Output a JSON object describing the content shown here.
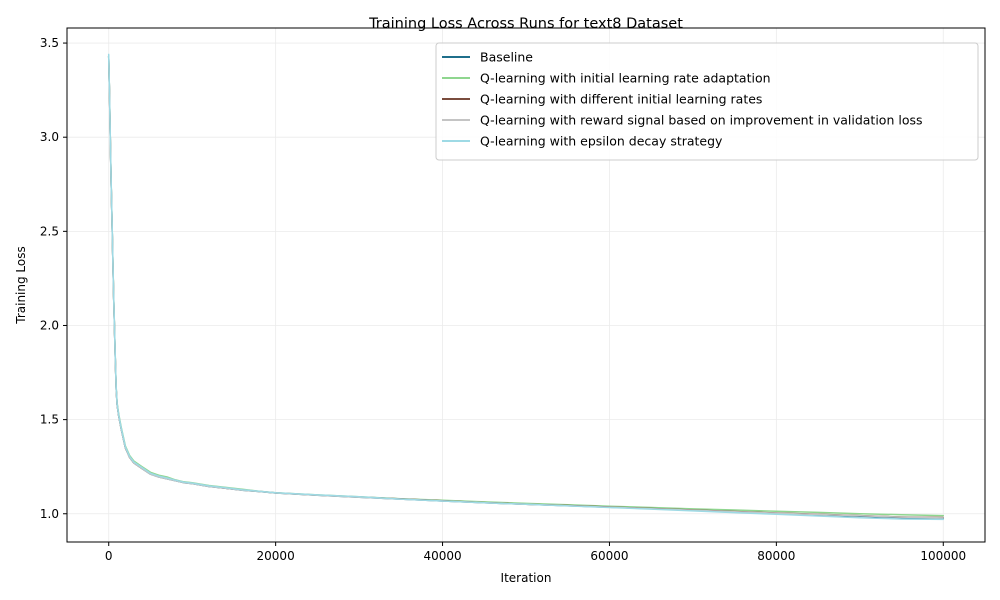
{
  "chart_data": {
    "type": "line",
    "title": "Training Loss Across Runs for text8 Dataset",
    "xlabel": "Iteration",
    "ylabel": "Training Loss",
    "xlim": [
      -5000,
      105000
    ],
    "ylim": [
      0.85,
      3.58
    ],
    "xticks": [
      0,
      20000,
      40000,
      60000,
      80000,
      100000
    ],
    "xtick_labels": [
      "0",
      "20000",
      "40000",
      "60000",
      "80000",
      "100000"
    ],
    "yticks": [
      1.0,
      1.5,
      2.0,
      2.5,
      3.0,
      3.5
    ],
    "ytick_labels": [
      "1.0",
      "1.5",
      "2.0",
      "2.5",
      "3.0",
      "3.5"
    ],
    "grid": true,
    "legend_position": "top-right",
    "x": [
      0,
      100,
      200,
      300,
      400,
      500,
      600,
      700,
      800,
      900,
      1000,
      1200,
      1500,
      2000,
      2500,
      3000,
      4000,
      5000,
      6000,
      7000,
      8000,
      9000,
      10000,
      12000,
      14000,
      16000,
      18000,
      20000,
      25000,
      30000,
      35000,
      40000,
      45000,
      50000,
      55000,
      60000,
      65000,
      70000,
      75000,
      80000,
      85000,
      90000,
      95000,
      100000
    ],
    "series": [
      {
        "name": "Baseline",
        "color": "#1f6f8b",
        "values": [
          3.43,
          3.2,
          2.96,
          2.74,
          2.53,
          2.33,
          2.14,
          1.96,
          1.8,
          1.66,
          1.58,
          1.52,
          1.45,
          1.35,
          1.3,
          1.27,
          1.24,
          1.21,
          1.195,
          1.185,
          1.175,
          1.165,
          1.16,
          1.145,
          1.135,
          1.125,
          1.118,
          1.11,
          1.098,
          1.088,
          1.078,
          1.068,
          1.058,
          1.05,
          1.043,
          1.035,
          1.027,
          1.018,
          1.01,
          1.001,
          0.994,
          0.987,
          0.979,
          0.975
        ]
      },
      {
        "name": "Q-learning with initial learning rate adaptation",
        "color": "#8fd68f",
        "values": [
          3.43,
          3.21,
          2.97,
          2.75,
          2.54,
          2.34,
          2.15,
          1.97,
          1.81,
          1.67,
          1.59,
          1.53,
          1.46,
          1.36,
          1.31,
          1.28,
          1.25,
          1.22,
          1.205,
          1.195,
          1.18,
          1.17,
          1.165,
          1.15,
          1.14,
          1.13,
          1.12,
          1.112,
          1.1,
          1.09,
          1.08,
          1.072,
          1.063,
          1.055,
          1.048,
          1.04,
          1.033,
          1.026,
          1.02,
          1.013,
          1.007,
          1.0,
          0.995,
          0.99
        ]
      },
      {
        "name": "Q-learning with different initial learning rates",
        "color": "#7a4c3d",
        "values": [
          3.43,
          3.2,
          2.96,
          2.74,
          2.53,
          2.33,
          2.14,
          1.96,
          1.8,
          1.66,
          1.58,
          1.52,
          1.45,
          1.35,
          1.3,
          1.27,
          1.24,
          1.212,
          1.197,
          1.187,
          1.177,
          1.166,
          1.161,
          1.146,
          1.136,
          1.126,
          1.119,
          1.111,
          1.099,
          1.089,
          1.079,
          1.069,
          1.059,
          1.051,
          1.044,
          1.036,
          1.028,
          1.02,
          1.012,
          1.004,
          0.997,
          0.99,
          0.983,
          0.98
        ]
      },
      {
        "name": "Q-learning with reward signal based on improvement in validation loss",
        "color": "#c4c4c4",
        "values": [
          3.43,
          3.2,
          2.96,
          2.74,
          2.53,
          2.33,
          2.14,
          1.96,
          1.8,
          1.66,
          1.58,
          1.52,
          1.45,
          1.35,
          1.3,
          1.27,
          1.24,
          1.21,
          1.195,
          1.185,
          1.175,
          1.165,
          1.16,
          1.145,
          1.135,
          1.125,
          1.118,
          1.11,
          1.098,
          1.088,
          1.078,
          1.068,
          1.058,
          1.05,
          1.043,
          1.035,
          1.027,
          1.019,
          1.011,
          1.003,
          0.996,
          0.989,
          0.982,
          0.978
        ]
      },
      {
        "name": "Q-learning with epsilon decay strategy",
        "color": "#9edae5",
        "values": [
          3.44,
          3.21,
          2.97,
          2.75,
          2.54,
          2.34,
          2.15,
          1.97,
          1.81,
          1.67,
          1.585,
          1.525,
          1.455,
          1.355,
          1.305,
          1.275,
          1.245,
          1.215,
          1.2,
          1.19,
          1.178,
          1.168,
          1.163,
          1.148,
          1.138,
          1.128,
          1.12,
          1.112,
          1.1,
          1.09,
          1.078,
          1.068,
          1.058,
          1.05,
          1.042,
          1.033,
          1.025,
          1.015,
          1.006,
          0.997,
          0.988,
          0.979,
          0.972,
          0.97
        ]
      }
    ]
  }
}
